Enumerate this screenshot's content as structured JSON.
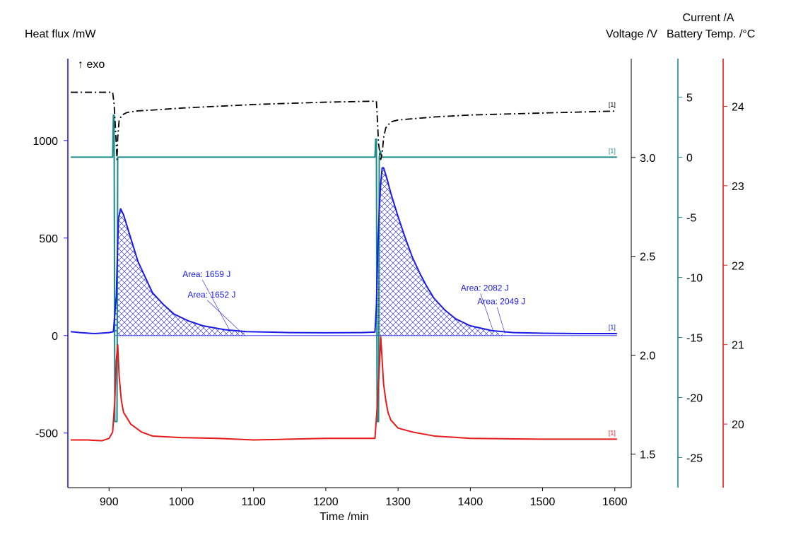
{
  "chart_data": {
    "type": "line",
    "xlabel": "Time /min",
    "xlim": [
      843,
      1610
    ],
    "xticks": [
      900,
      1000,
      1100,
      1200,
      1300,
      1400,
      1500,
      1600
    ],
    "annotation_exo": "↑ exo",
    "series_tag": "[1]",
    "axes": {
      "heat_flux": {
        "label": "Heat flux /mW",
        "color": "#1a1ae6",
        "range": [
          -780,
          1420
        ],
        "ticks": [
          -500,
          0,
          500,
          1000
        ],
        "tick_labels": [
          "-500",
          "0",
          "500",
          "1000"
        ]
      },
      "voltage": {
        "label": "Voltage /V",
        "color": "#000000",
        "range": [
          1.33,
          3.5
        ],
        "ticks": [
          1.5,
          2.0,
          2.5,
          3.0
        ],
        "tick_labels": [
          "1.5",
          "2.0",
          "2.5",
          "3.0"
        ]
      },
      "current": {
        "label": "Current /A",
        "color": "#1a8a8a",
        "range": [
          -27.5,
          8.2
        ],
        "ticks": [
          -25,
          -20,
          -15,
          -10,
          -5,
          0,
          5
        ],
        "tick_labels": [
          "-25",
          "-20",
          "-15",
          "-10",
          "-5",
          "0",
          "5"
        ]
      },
      "battery_temp": {
        "label": "Battery Temp. /°C",
        "color": "#e61a1a",
        "range": [
          19.2,
          24.6
        ],
        "ticks": [
          20,
          21,
          22,
          23,
          24
        ],
        "tick_labels": [
          "20",
          "21",
          "22",
          "23",
          "24"
        ]
      }
    },
    "series": [
      {
        "name": "Voltage",
        "axis": "voltage",
        "style": "dashdot",
        "x": [
          847,
          905,
          907,
          909,
          911,
          912,
          914,
          918,
          925,
          940,
          960,
          1000,
          1100,
          1200,
          1270,
          1271,
          1273,
          1276,
          1278,
          1280,
          1283,
          1290,
          1300,
          1350,
          1400,
          1500,
          1603
        ],
        "y": [
          3.33,
          3.33,
          3.27,
          3.14,
          2.99,
          3.1,
          3.19,
          3.215,
          3.228,
          3.236,
          3.24,
          3.25,
          3.268,
          3.28,
          3.285,
          3.22,
          3.07,
          2.99,
          3.02,
          3.1,
          3.15,
          3.18,
          3.19,
          3.205,
          3.215,
          3.225,
          3.235
        ]
      },
      {
        "name": "Current",
        "axis": "current",
        "style": "solid",
        "x": [
          847,
          905,
          906,
          907,
          908,
          909,
          910,
          911,
          912,
          913,
          1268,
          1269,
          1270,
          1271,
          1272,
          1273,
          1274,
          1275,
          1276,
          1277,
          1603
        ],
        "y": [
          0,
          0,
          3.5,
          3.5,
          -22,
          -22,
          -22,
          -22,
          0,
          0,
          0,
          1.5,
          1.5,
          -22,
          -22,
          -22,
          0,
          0.5,
          0.5,
          0,
          0
        ]
      },
      {
        "name": "Heat flux",
        "axis": "heat_flux",
        "style": "solid",
        "x": [
          847,
          860,
          880,
          900,
          906,
          910,
          913,
          916,
          920,
          930,
          940,
          950,
          960,
          975,
          990,
          1010,
          1030,
          1060,
          1090,
          1120,
          1150,
          1200,
          1250,
          1268,
          1270,
          1272,
          1274,
          1276,
          1278,
          1280,
          1285,
          1290,
          1300,
          1310,
          1320,
          1330,
          1340,
          1350,
          1365,
          1380,
          1400,
          1430,
          1460,
          1500,
          1550,
          1603
        ],
        "y": [
          20,
          15,
          10,
          15,
          20,
          200,
          600,
          650,
          620,
          500,
          380,
          300,
          220,
          160,
          110,
          75,
          50,
          30,
          20,
          18,
          15,
          14,
          15,
          18,
          150,
          450,
          650,
          780,
          860,
          860,
          800,
          730,
          610,
          500,
          400,
          320,
          250,
          190,
          130,
          85,
          50,
          25,
          15,
          12,
          10,
          10
        ]
      },
      {
        "name": "Battery Temp.",
        "axis": "battery_temp",
        "style": "solid",
        "x": [
          847,
          870,
          890,
          900,
          905,
          908,
          910,
          912,
          914,
          917,
          920,
          930,
          945,
          960,
          1000,
          1050,
          1100,
          1150,
          1200,
          1268,
          1271,
          1274,
          1276,
          1278,
          1280,
          1283,
          1286,
          1290,
          1300,
          1320,
          1350,
          1400,
          1500,
          1603
        ],
        "y": [
          19.8,
          19.8,
          19.79,
          19.82,
          19.9,
          20.3,
          20.8,
          21.0,
          20.6,
          20.3,
          20.15,
          20.0,
          19.9,
          19.85,
          19.83,
          19.82,
          19.8,
          19.81,
          19.82,
          19.82,
          20.2,
          20.7,
          21.1,
          20.8,
          20.5,
          20.3,
          20.15,
          20.05,
          19.95,
          19.9,
          19.85,
          19.82,
          19.81,
          19.81
        ]
      }
    ],
    "integrations": [
      {
        "x_start": 907,
        "x_end": 1090,
        "labels": [
          "Area: 1659 J",
          "Area: 1652 J"
        ],
        "label_anchor": [
          {
            "x": 1035,
            "y": 300
          },
          {
            "x": 1042,
            "y": 195
          }
        ],
        "pointer_target": [
          {
            "x": 1068,
            "y": 20
          },
          {
            "x": 1085,
            "y": 10
          }
        ]
      },
      {
        "x_start": 1271,
        "x_end": 1450,
        "labels": [
          "Area: 2082 J",
          "Area: 2049 J"
        ],
        "label_anchor": [
          {
            "x": 1420,
            "y": 230
          },
          {
            "x": 1443,
            "y": 160
          }
        ],
        "pointer_target": [
          {
            "x": 1432,
            "y": 20
          },
          {
            "x": 1448,
            "y": 10
          }
        ]
      }
    ]
  }
}
